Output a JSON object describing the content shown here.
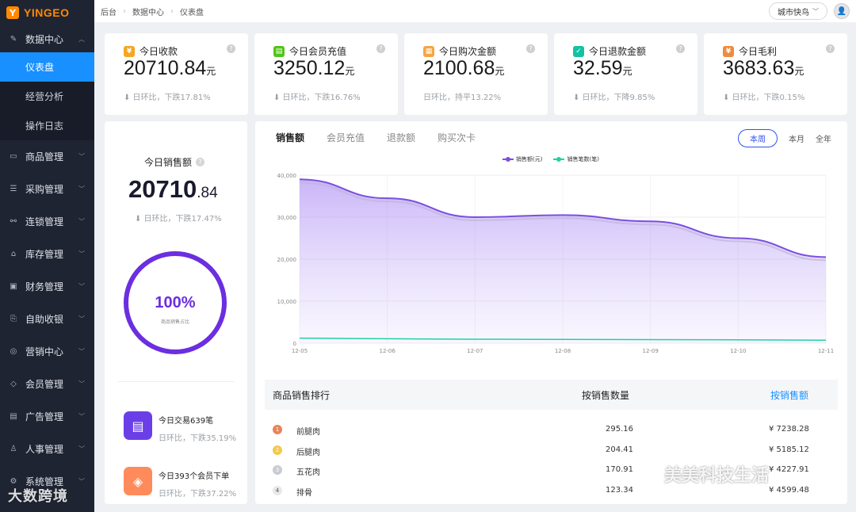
{
  "brand": {
    "logo_text": "YINGEO",
    "color": "#ff8a00"
  },
  "breadcrumb": [
    "后台",
    "数据中心",
    "仪表盘"
  ],
  "header": {
    "city_select": "城市快鸟"
  },
  "sidebar": {
    "open_group": {
      "label": "数据中心",
      "icon": "edit-icon"
    },
    "sub_items": [
      "仪表盘",
      "经营分析",
      "操作日志"
    ],
    "items": [
      {
        "label": "商品管理",
        "icon": "bag-icon"
      },
      {
        "label": "采购管理",
        "icon": "list-icon"
      },
      {
        "label": "连锁管理",
        "icon": "chain-icon"
      },
      {
        "label": "库存管理",
        "icon": "warehouse-icon"
      },
      {
        "label": "财务管理",
        "icon": "wallet-icon"
      },
      {
        "label": "自助收银",
        "icon": "cashier-icon"
      },
      {
        "label": "营销中心",
        "icon": "compass-icon"
      },
      {
        "label": "会员管理",
        "icon": "diamond-icon"
      },
      {
        "label": "广告管理",
        "icon": "ad-icon"
      },
      {
        "label": "人事管理",
        "icon": "user-icon"
      },
      {
        "label": "系统管理",
        "icon": "settings-icon"
      }
    ]
  },
  "stats": [
    {
      "title": "今日收款",
      "value": "20710.84",
      "unit": "元",
      "compare": "⬇ 日环比，下跌17.81%",
      "icon_color": "#f5a623"
    },
    {
      "title": "今日会员充值",
      "value": "3250.12",
      "unit": "元",
      "compare": "⬇ 日环比，下跌16.76%",
      "icon_color": "#52c41a"
    },
    {
      "title": "今日购次金额",
      "value": "2100.68",
      "unit": "元",
      "compare": "日环比，持平13.22%",
      "icon_color": "#f7a541"
    },
    {
      "title": "今日退款金额",
      "value": "32.59",
      "unit": "元",
      "compare": "⬇ 日环比，下降9.85%",
      "icon_color": "#13c2a3"
    },
    {
      "title": "今日毛利",
      "value": "3683.63",
      "unit": "元",
      "compare": "⬇ 日环比，下跌0.15%",
      "icon_color": "#f08a3c"
    }
  ],
  "sales_today": {
    "title": "今日销售额",
    "value_int": "20710",
    "value_dec": ".84",
    "compare": "⬇ 日环比，下跌17.47%",
    "ring_percent": "100%",
    "ring_label": "商品销售占比",
    "ring_fraction": 1.0,
    "items": [
      {
        "text": "今日交易639笔",
        "compare": "日环比，下跌35.19%",
        "color": "#6b3fe8"
      },
      {
        "text": "今日393个会员下单",
        "compare": "日环比，下跌37.22%",
        "color": "#ff8a5b"
      }
    ]
  },
  "chart_panel": {
    "tabs": [
      "销售额",
      "会员充值",
      "退款额",
      "购买次卡"
    ],
    "periods": [
      "本周",
      "本月",
      "全年"
    ]
  },
  "chart_data": {
    "type": "area",
    "categories": [
      "12-05",
      "12-06",
      "12-07",
      "12-08",
      "12-09",
      "12-10",
      "12-11"
    ],
    "series": [
      {
        "name": "销售额(元)",
        "color": "#7b4fe0",
        "values": [
          39000,
          34500,
          30000,
          30500,
          29000,
          25000,
          20500
        ]
      },
      {
        "name": "销售笔数(笔)",
        "color": "#1fd1a8",
        "values": [
          1200,
          1050,
          950,
          900,
          850,
          800,
          700
        ]
      }
    ],
    "y_ticks": [
      "0",
      "10,000",
      "20,000",
      "30,000",
      "40,000"
    ],
    "ylim": [
      0,
      40000
    ],
    "grid": true,
    "legend": "top-center"
  },
  "ranking": {
    "headers": [
      "商品销售排行",
      "按销售数量",
      "按销售额"
    ],
    "rows": [
      {
        "rank": "1",
        "name": "前腿肉",
        "qty": "295.16",
        "amount": "¥ 7238.28",
        "medal": "#e8845a"
      },
      {
        "rank": "2",
        "name": "后腿肉",
        "qty": "204.41",
        "amount": "¥ 5185.12",
        "medal": "#f2c94c"
      },
      {
        "rank": "3",
        "name": "五花肉",
        "qty": "170.91",
        "amount": "¥ 4227.91",
        "medal": "#c8ccd2"
      },
      {
        "rank": "4",
        "name": "排骨",
        "qty": "123.34",
        "amount": "¥ 4599.48",
        "medal": "#e8e8e8"
      }
    ]
  },
  "watermarks": {
    "left": "大数跨境",
    "right": "美美科技生活"
  }
}
